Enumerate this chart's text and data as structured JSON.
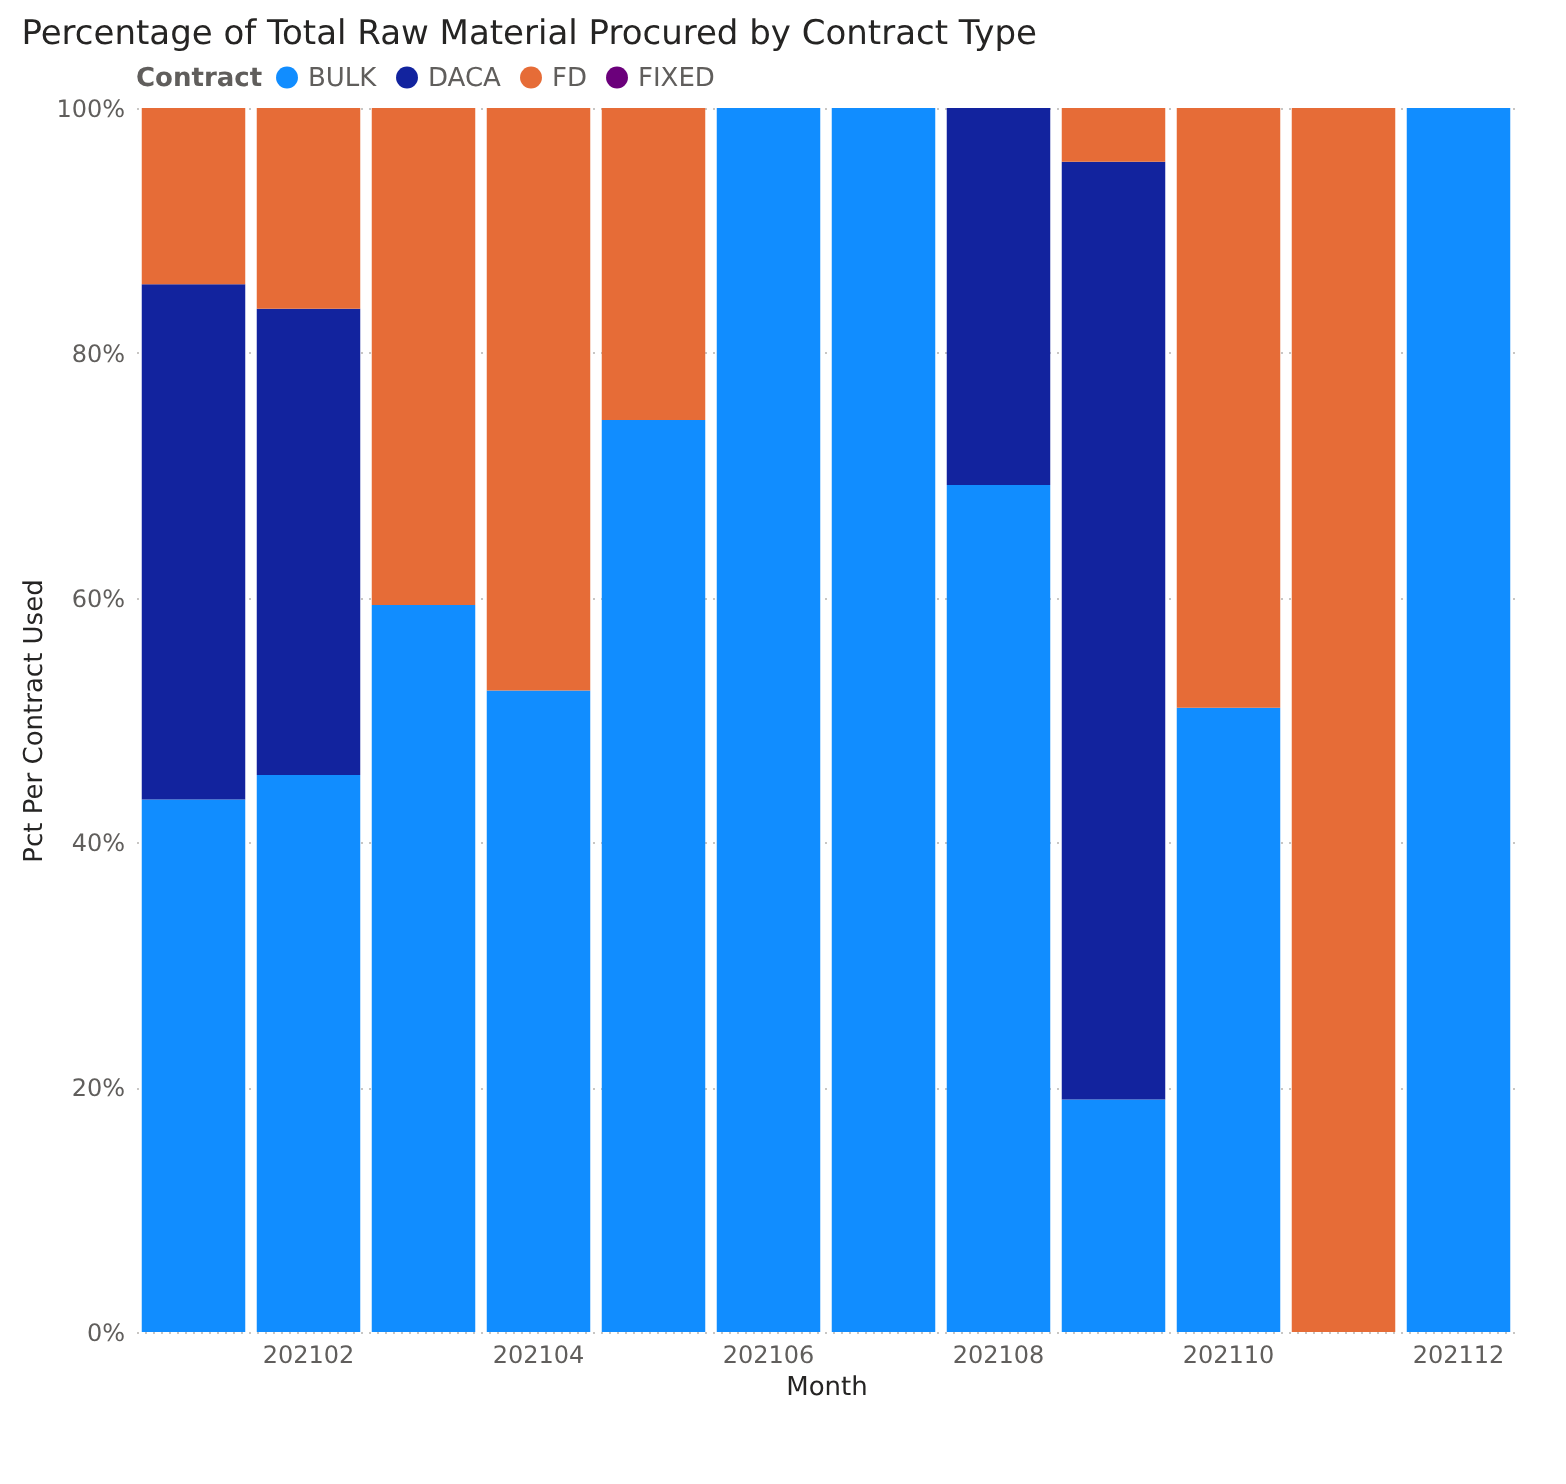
{
  "chart_data": {
    "type": "bar",
    "title": "Percentage of Total Raw Material Procured by Contract Type",
    "xlabel": "Month",
    "ylabel": "Pct Per Contract Used",
    "legend_title": "Contract",
    "legend": "top",
    "grid": "y",
    "stacked": true,
    "categories": [
      null,
      "202102",
      null,
      "202104",
      null,
      "202106",
      null,
      "202108",
      null,
      "202110",
      null,
      "202112"
    ],
    "ylim": [
      0,
      100
    ],
    "yticks": [
      {
        "value": 0,
        "label": "0%"
      },
      {
        "value": 20,
        "label": "20%"
      },
      {
        "value": 40,
        "label": "40%"
      },
      {
        "value": 60,
        "label": "60%"
      },
      {
        "value": 80,
        "label": "80%"
      },
      {
        "value": 100,
        "label": "100%"
      }
    ],
    "series": [
      {
        "name": "BULK",
        "color": "#118dff",
        "values": [
          43.5,
          45.5,
          59.4,
          52.4,
          74.5,
          100,
          100,
          69.2,
          19.0,
          51.0,
          null,
          100
        ]
      },
      {
        "name": "DACA",
        "color": "#12239e",
        "values": [
          42.1,
          38.1,
          null,
          null,
          null,
          null,
          null,
          30.8,
          76.6,
          null,
          null,
          null
        ]
      },
      {
        "name": "FD",
        "color": "#e66c37",
        "values": [
          14.4,
          16.4,
          40.6,
          47.6,
          25.5,
          null,
          null,
          null,
          4.4,
          49.0,
          100,
          null
        ]
      },
      {
        "name": "FIXED",
        "color": "#6b007b",
        "values": [
          null,
          null,
          null,
          null,
          null,
          null,
          null,
          null,
          null,
          null,
          null,
          null
        ]
      }
    ]
  }
}
